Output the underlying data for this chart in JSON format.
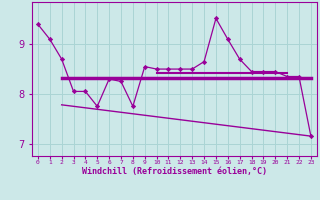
{
  "x": [
    0,
    1,
    2,
    3,
    4,
    5,
    6,
    7,
    8,
    9,
    10,
    11,
    12,
    13,
    14,
    15,
    16,
    17,
    18,
    19,
    20,
    21,
    22,
    23
  ],
  "windchill": [
    9.4,
    9.1,
    8.7,
    8.05,
    8.05,
    7.75,
    8.3,
    8.25,
    7.75,
    8.55,
    8.5,
    8.5,
    8.5,
    8.5,
    8.65,
    9.52,
    9.1,
    8.7,
    8.45,
    8.45,
    8.45,
    8.35,
    8.35,
    7.15
  ],
  "flat_line_x": [
    2,
    23
  ],
  "flat_line_y": [
    8.32,
    8.32
  ],
  "flat_line2_x": [
    10,
    21
  ],
  "flat_line2_y": [
    8.42,
    8.42
  ],
  "decline_line_x": [
    2,
    23
  ],
  "decline_line_y": [
    7.78,
    7.15
  ],
  "line_color": "#990099",
  "bg_color": "#cce8e8",
  "grid_color": "#aad4d4",
  "xlabel": "Windchill (Refroidissement éolien,°C)",
  "ylim": [
    6.75,
    9.85
  ],
  "xlim": [
    -0.5,
    23.5
  ],
  "yticks": [
    7,
    8,
    9
  ],
  "xtick_labels": [
    "0",
    "1",
    "2",
    "3",
    "4",
    "5",
    "6",
    "7",
    "8",
    "9",
    "10",
    "11",
    "12",
    "13",
    "14",
    "15",
    "16",
    "17",
    "18",
    "19",
    "20",
    "21",
    "22",
    "23"
  ]
}
